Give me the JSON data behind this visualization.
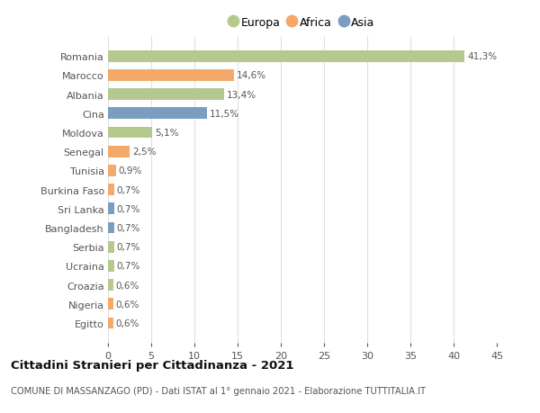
{
  "categories": [
    "Romania",
    "Marocco",
    "Albania",
    "Cina",
    "Moldova",
    "Senegal",
    "Tunisia",
    "Burkina Faso",
    "Sri Lanka",
    "Bangladesh",
    "Serbia",
    "Ucraina",
    "Croazia",
    "Nigeria",
    "Egitto"
  ],
  "values": [
    41.3,
    14.6,
    13.4,
    11.5,
    5.1,
    2.5,
    0.9,
    0.7,
    0.7,
    0.7,
    0.7,
    0.7,
    0.6,
    0.6,
    0.6
  ],
  "labels": [
    "41,3%",
    "14,6%",
    "13,4%",
    "11,5%",
    "5,1%",
    "2,5%",
    "0,9%",
    "0,7%",
    "0,7%",
    "0,7%",
    "0,7%",
    "0,7%",
    "0,6%",
    "0,6%",
    "0,6%"
  ],
  "colors": [
    "#b5c98e",
    "#f4a86a",
    "#b5c98e",
    "#7b9dc0",
    "#b5c98e",
    "#f4a86a",
    "#f4a86a",
    "#f4a86a",
    "#7b9dc0",
    "#7b9dc0",
    "#b5c98e",
    "#b5c98e",
    "#b5c98e",
    "#f4a86a",
    "#f4a86a"
  ],
  "legend": [
    {
      "label": "Europa",
      "color": "#b5c98e"
    },
    {
      "label": "Africa",
      "color": "#f4a86a"
    },
    {
      "label": "Asia",
      "color": "#7b9dc0"
    }
  ],
  "xlim": [
    0,
    45
  ],
  "xticks": [
    0,
    5,
    10,
    15,
    20,
    25,
    30,
    35,
    40,
    45
  ],
  "title": "Cittadini Stranieri per Cittadinanza - 2021",
  "subtitle": "COMUNE DI MASSANZAGO (PD) - Dati ISTAT al 1° gennaio 2021 - Elaborazione TUTTITALIA.IT",
  "bg_color": "#ffffff",
  "plot_bg_color": "#ffffff",
  "grid_color": "#e0e0e0",
  "bar_height": 0.6,
  "label_fontsize": 7.5,
  "ytick_fontsize": 8.0,
  "xtick_fontsize": 8.0
}
